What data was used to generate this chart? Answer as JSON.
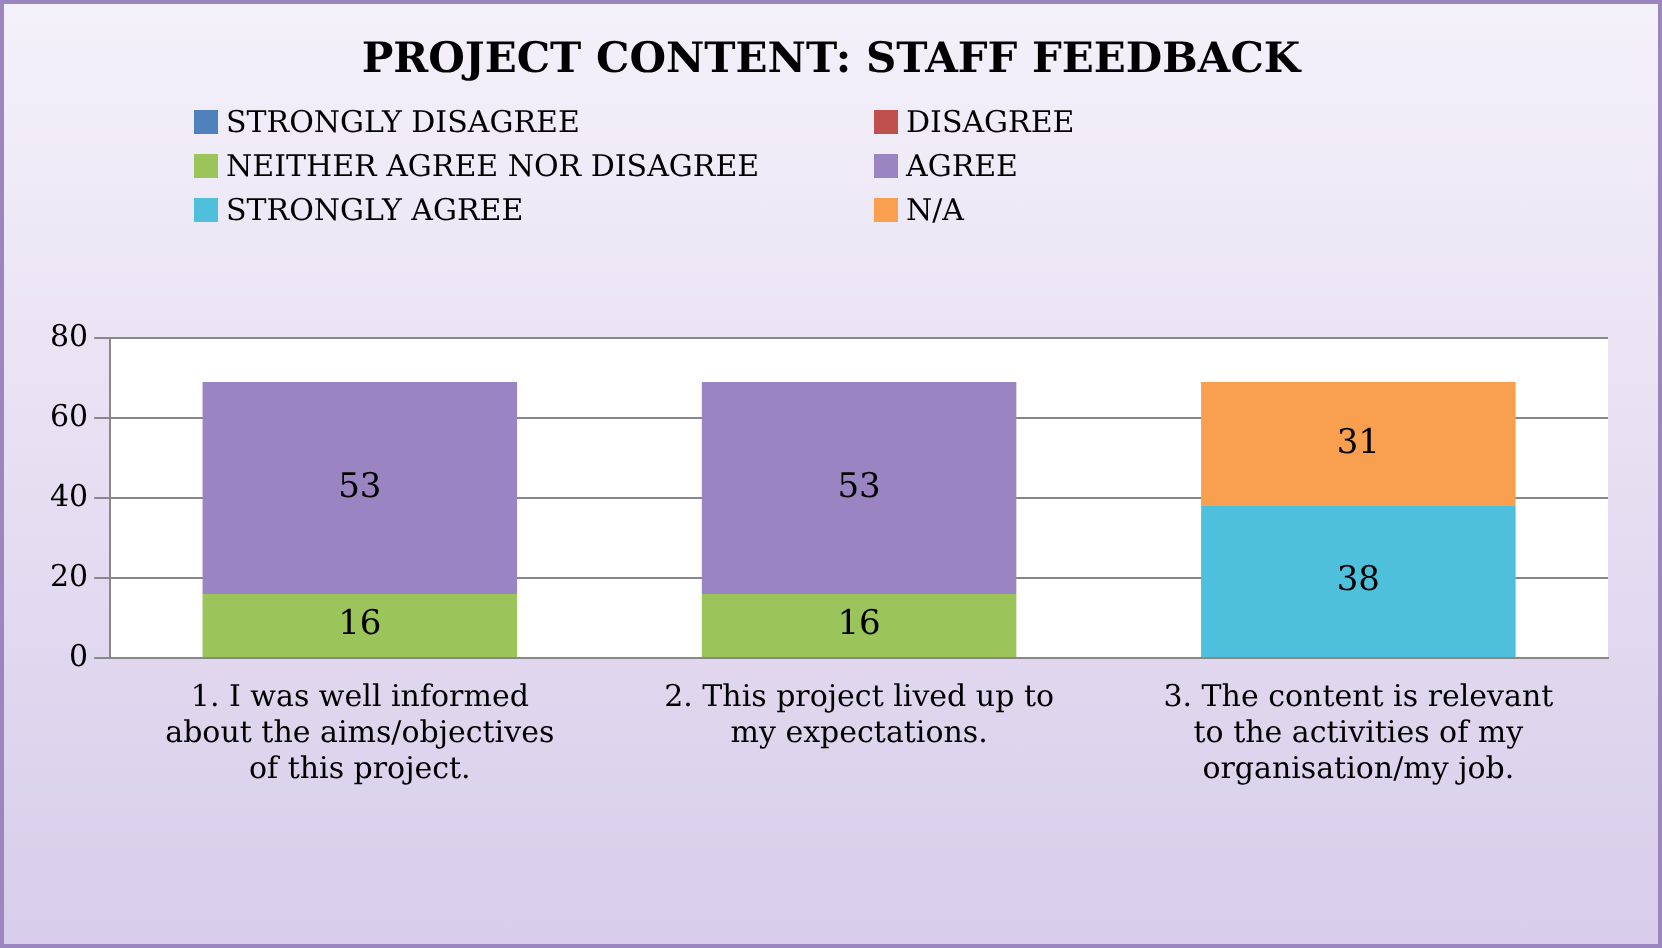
{
  "chart_data": {
    "type": "bar",
    "stacked": true,
    "title": "PROJECT CONTENT: STAFF FEEDBACK",
    "categories": [
      "1. I was well informed about the aims/objectives of this project.",
      "2. This project lived up to my expectations.",
      "3. The content is relevant to the activities of my organisation/my job."
    ],
    "series": [
      {
        "name": "STRONGLY DISAGREE",
        "color": "#4f81bd",
        "values": [
          null,
          null,
          null
        ]
      },
      {
        "name": "DISAGREE",
        "color": "#c0504d",
        "values": [
          null,
          null,
          null
        ]
      },
      {
        "name": "NEITHER AGREE NOR DISAGREE",
        "color": "#9bc45a",
        "values": [
          16,
          16,
          null
        ]
      },
      {
        "name": "AGREE",
        "color": "#9a84c2",
        "values": [
          53,
          53,
          null
        ]
      },
      {
        "name": "STRONGLY AGREE",
        "color": "#4fc0dc",
        "values": [
          null,
          null,
          38
        ]
      },
      {
        "name": "N/A",
        "color": "#f8a050",
        "values": [
          null,
          null,
          31
        ]
      }
    ],
    "ylim": [
      0,
      80
    ],
    "yticks": [
      0,
      20,
      40,
      60,
      80
    ],
    "grid": "y",
    "legend": "top",
    "data_labels": true
  }
}
